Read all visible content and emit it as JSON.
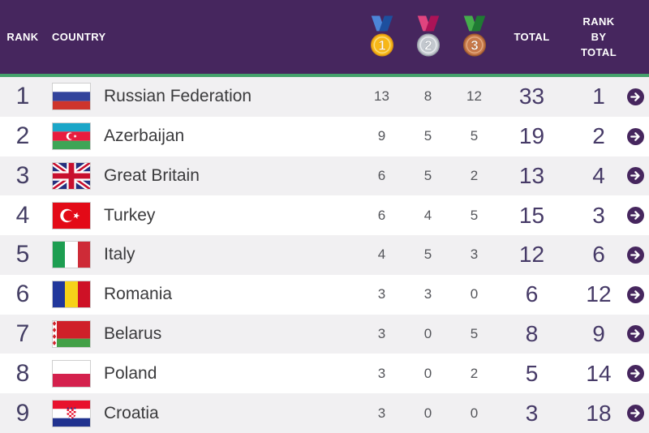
{
  "table": {
    "headers": {
      "rank": "RANK",
      "country": "COUNTRY",
      "gold_label": "1",
      "silver_label": "2",
      "bronze_label": "3",
      "total": "TOTAL",
      "rank_by_total_lines": [
        "RANK",
        "BY",
        "TOTAL"
      ]
    },
    "rows": [
      {
        "rank": "1",
        "country": "Russian Federation",
        "flag": "russian-federation",
        "gold": "13",
        "silver": "8",
        "bronze": "12",
        "total": "33",
        "rank_by_total": "1"
      },
      {
        "rank": "2",
        "country": "Azerbaijan",
        "flag": "azerbaijan",
        "gold": "9",
        "silver": "5",
        "bronze": "5",
        "total": "19",
        "rank_by_total": "2"
      },
      {
        "rank": "3",
        "country": "Great Britain",
        "flag": "great-britain",
        "gold": "6",
        "silver": "5",
        "bronze": "2",
        "total": "13",
        "rank_by_total": "4"
      },
      {
        "rank": "4",
        "country": "Turkey",
        "flag": "turkey",
        "gold": "6",
        "silver": "4",
        "bronze": "5",
        "total": "15",
        "rank_by_total": "3"
      },
      {
        "rank": "5",
        "country": "Italy",
        "flag": "italy",
        "gold": "4",
        "silver": "5",
        "bronze": "3",
        "total": "12",
        "rank_by_total": "6"
      },
      {
        "rank": "6",
        "country": "Romania",
        "flag": "romania",
        "gold": "3",
        "silver": "3",
        "bronze": "0",
        "total": "6",
        "rank_by_total": "12"
      },
      {
        "rank": "7",
        "country": "Belarus",
        "flag": "belarus",
        "gold": "3",
        "silver": "0",
        "bronze": "5",
        "total": "8",
        "rank_by_total": "9"
      },
      {
        "rank": "8",
        "country": "Poland",
        "flag": "poland",
        "gold": "3",
        "silver": "0",
        "bronze": "2",
        "total": "5",
        "rank_by_total": "14"
      },
      {
        "rank": "9",
        "country": "Croatia",
        "flag": "croatia",
        "gold": "3",
        "silver": "0",
        "bronze": "0",
        "total": "3",
        "rank_by_total": "18"
      }
    ],
    "icons": {
      "gold": "gold-medal-icon",
      "silver": "silver-medal-icon",
      "bronze": "bronze-medal-icon",
      "row_link": "arrow-right-circle-icon"
    }
  },
  "colors": {
    "header_bg": "#46265E",
    "header_text": "#FFFFFF",
    "accent_green": "#44A16B",
    "row_bg": "#FFFFFF",
    "row_alt_bg": "#F1F0F2",
    "rank_text": "#443E64",
    "country_text": "#3A3A3C",
    "count_text": "#54555A",
    "total_text": "#463A67",
    "arrow_bg": "#46265E"
  }
}
